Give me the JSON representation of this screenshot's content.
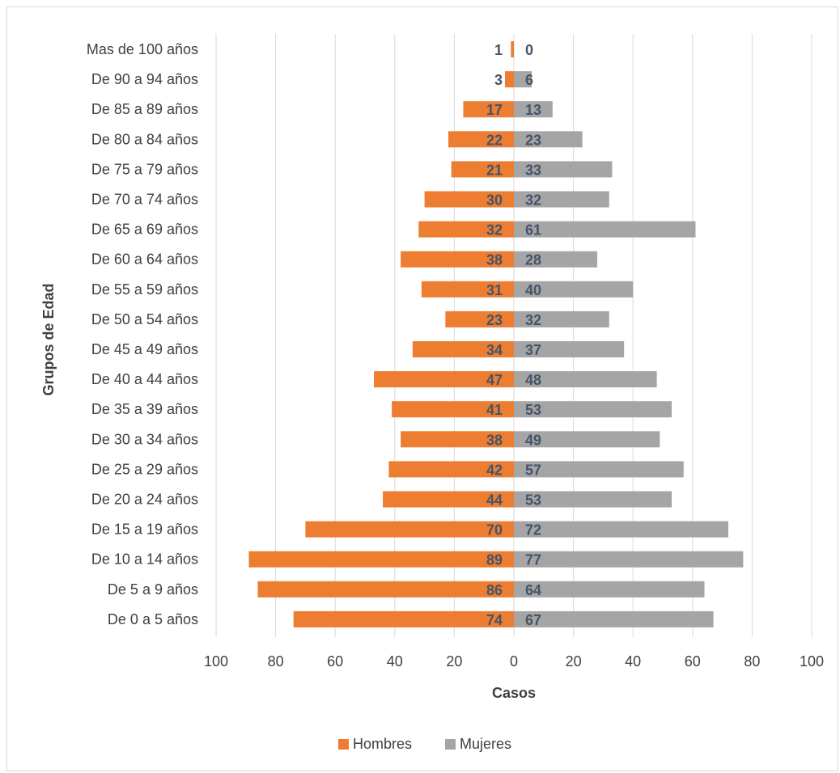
{
  "chart_data": {
    "type": "bar",
    "orientation": "horizontal",
    "layout": "population-pyramid",
    "xlabel": "Casos",
    "ylabel": "Grupos de Edad",
    "xlim": [
      -100,
      100
    ],
    "x_ticks": [
      "100",
      "80",
      "60",
      "40",
      "20",
      "0",
      "20",
      "40",
      "60",
      "80",
      "100"
    ],
    "x_tick_values": [
      -100,
      -80,
      -60,
      -40,
      -20,
      0,
      20,
      40,
      60,
      80,
      100
    ],
    "grid": "vertical",
    "legend_position": "bottom",
    "categories": [
      "De 0 a 5 años",
      "De 5 a 9 años",
      "De 10 a 14 años",
      "De 15 a 19 años",
      "De 20 a 24 años",
      "De 25 a 29 años",
      "De 30 a 34 años",
      "De 35 a 39 años",
      "De 40 a 44 años",
      "De 45 a 49 años",
      "De 50 a 54 años",
      "De 55 a 59 años",
      "De 60 a 64 años",
      "De 65 a 69 años",
      "De 70 a 74 años",
      "De 75 a 79 años",
      "De 80 a 84 años",
      "De 85 a 89 años",
      "De 90 a 94 años",
      "Mas de 100 años"
    ],
    "series": [
      {
        "name": "Hombres",
        "color": "#ed7d31",
        "side": "left",
        "values": [
          74,
          86,
          89,
          70,
          44,
          42,
          38,
          41,
          47,
          34,
          23,
          31,
          38,
          32,
          30,
          21,
          22,
          17,
          3,
          1
        ]
      },
      {
        "name": "Mujeres",
        "color": "#a5a5a5",
        "side": "right",
        "values": [
          67,
          64,
          77,
          72,
          53,
          57,
          49,
          53,
          48,
          37,
          32,
          40,
          28,
          61,
          32,
          33,
          23,
          13,
          6,
          0
        ]
      }
    ]
  }
}
